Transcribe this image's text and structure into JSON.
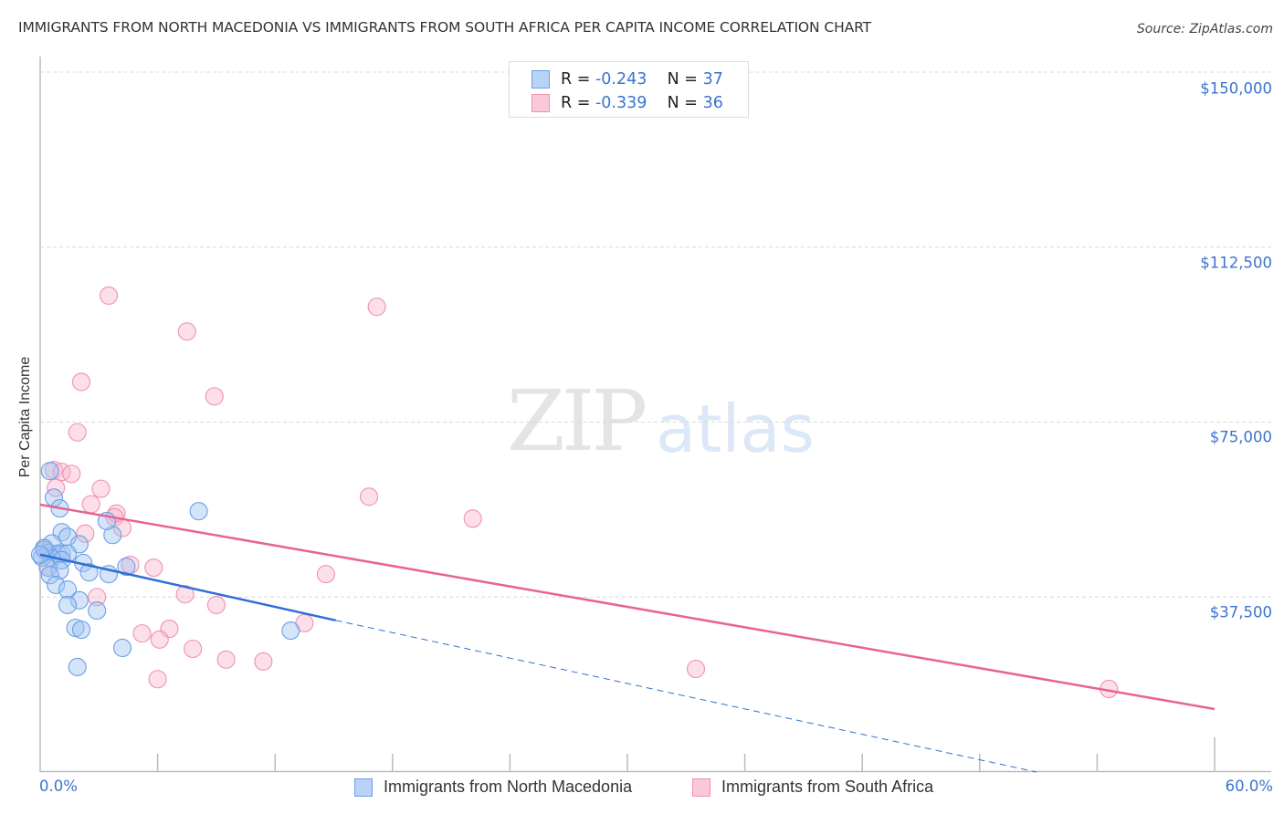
{
  "header": {
    "title": "IMMIGRANTS FROM NORTH MACEDONIA VS IMMIGRANTS FROM SOUTH AFRICA PER CAPITA INCOME CORRELATION CHART",
    "source": "Source: ZipAtlas.com"
  },
  "watermark": {
    "zip": "ZIP",
    "atlas": "atlas"
  },
  "legend": {
    "series": [
      {
        "name": "Immigrants from North Macedonia",
        "r_label": "R =",
        "r_value": "-0.243",
        "n_label": "N =",
        "n_value": "37",
        "fill": "#b8d3f5",
        "stroke": "#6b9ee6"
      },
      {
        "name": "Immigrants from South Africa",
        "r_label": "R =",
        "r_value": "-0.339",
        "n_label": "N =",
        "n_value": "36",
        "fill": "#fac8d7",
        "stroke": "#ee92b0"
      }
    ]
  },
  "axes": {
    "ylabel": "Per Capita Income",
    "yticks": [
      "$150,000",
      "$112,500",
      "$75,000",
      "$37,500"
    ],
    "xtick_left": "0.0%",
    "xtick_right": "60.0%"
  },
  "colors": {
    "blue_line": "#2f6fd6",
    "pink_line": "#e8648f",
    "tick_text": "#3b73d1",
    "grid": "#d8d8d8"
  },
  "chart_data": {
    "type": "scatter",
    "title": "Immigrants from North Macedonia vs Immigrants from South Africa Per Capita Income Correlation Chart",
    "xlabel": "",
    "ylabel": "Per Capita Income",
    "xlim": [
      0,
      60
    ],
    "ylim": [
      0,
      150000
    ],
    "x_unit": "%",
    "grid": true,
    "legend_position": "top-center",
    "series": [
      {
        "name": "Immigrants from North Macedonia",
        "color": "#6b9ee6",
        "R": -0.243,
        "N": 37,
        "trendline": {
          "x": [
            0,
            15.1
          ],
          "y": [
            46600,
            32500
          ],
          "extended_dashed_to": [
            50.9,
            0
          ]
        },
        "points": [
          [
            0.5,
            64500
          ],
          [
            0.7,
            58800
          ],
          [
            1.0,
            56500
          ],
          [
            1.1,
            51400
          ],
          [
            1.4,
            50400
          ],
          [
            0.6,
            49000
          ],
          [
            2.0,
            48800
          ],
          [
            0.2,
            47600
          ],
          [
            0.4,
            47000
          ],
          [
            0.9,
            46800
          ],
          [
            1.1,
            46800
          ],
          [
            1.4,
            46800
          ],
          [
            0.1,
            46000
          ],
          [
            0.6,
            45800
          ],
          [
            1.1,
            45400
          ],
          [
            2.2,
            44800
          ],
          [
            0.4,
            43800
          ],
          [
            1.0,
            43200
          ],
          [
            0.5,
            42200
          ],
          [
            2.5,
            42800
          ],
          [
            3.5,
            42400
          ],
          [
            0.8,
            40100
          ],
          [
            1.4,
            39100
          ],
          [
            2.0,
            36800
          ],
          [
            1.4,
            35800
          ],
          [
            2.9,
            34600
          ],
          [
            1.8,
            30900
          ],
          [
            2.1,
            30500
          ],
          [
            4.2,
            26600
          ],
          [
            1.9,
            22500
          ],
          [
            8.1,
            55900
          ],
          [
            3.7,
            50800
          ],
          [
            3.4,
            53800
          ],
          [
            4.4,
            44000
          ],
          [
            12.8,
            30300
          ],
          [
            0.2,
            48000
          ],
          [
            0.0,
            46600
          ]
        ]
      },
      {
        "name": "Immigrants from South Africa",
        "color": "#ee92b0",
        "R": -0.339,
        "N": 36,
        "trendline": {
          "x": [
            0,
            60
          ],
          "y": [
            57300,
            13500
          ]
        },
        "points": [
          [
            3.5,
            102100
          ],
          [
            17.2,
            99700
          ],
          [
            7.5,
            94400
          ],
          [
            8.9,
            80500
          ],
          [
            2.1,
            83600
          ],
          [
            1.9,
            72800
          ],
          [
            0.7,
            64700
          ],
          [
            1.1,
            64300
          ],
          [
            1.6,
            63900
          ],
          [
            0.8,
            60900
          ],
          [
            2.6,
            57400
          ],
          [
            3.1,
            60700
          ],
          [
            3.9,
            55400
          ],
          [
            3.8,
            54600
          ],
          [
            4.2,
            52300
          ],
          [
            2.3,
            51100
          ],
          [
            16.8,
            59000
          ],
          [
            22.1,
            54300
          ],
          [
            0.2,
            48000
          ],
          [
            0.4,
            43800
          ],
          [
            5.8,
            43800
          ],
          [
            4.6,
            44400
          ],
          [
            14.6,
            42400
          ],
          [
            2.9,
            37500
          ],
          [
            7.4,
            38100
          ],
          [
            9.0,
            35800
          ],
          [
            5.2,
            29700
          ],
          [
            6.6,
            30700
          ],
          [
            6.1,
            28400
          ],
          [
            7.8,
            26400
          ],
          [
            9.5,
            24100
          ],
          [
            11.4,
            23700
          ],
          [
            13.5,
            31900
          ],
          [
            6.0,
            19900
          ],
          [
            33.5,
            22100
          ],
          [
            54.6,
            17800
          ]
        ]
      }
    ]
  }
}
